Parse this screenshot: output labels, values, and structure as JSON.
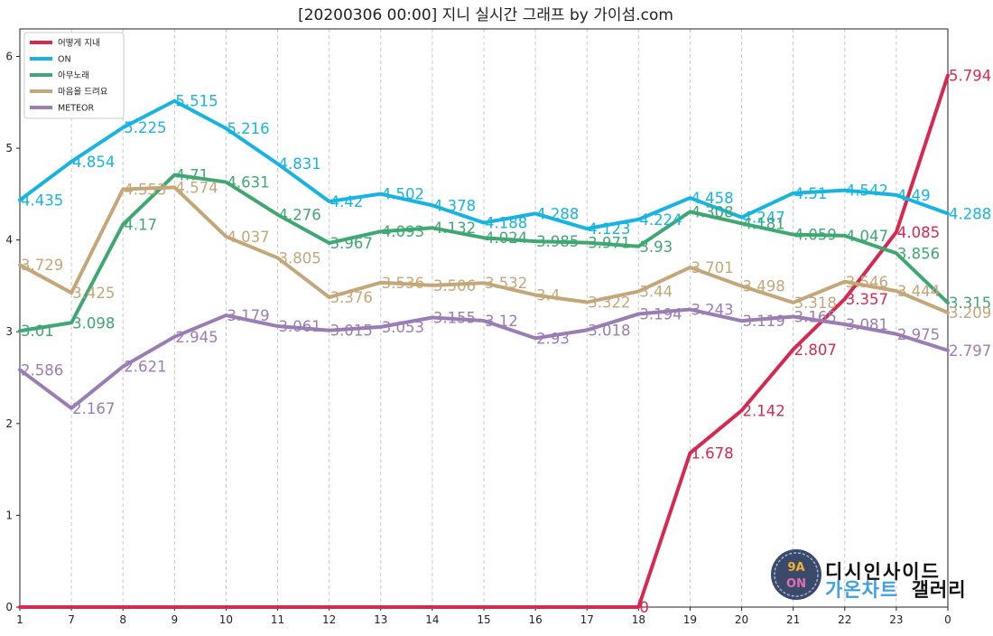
{
  "chart_data": {
    "type": "line",
    "title": "[20200306 00:00] 지니 실시간 그래프 by 가이섬.com",
    "xlabel": "",
    "ylabel": "",
    "categories": [
      "1",
      "7",
      "8",
      "9",
      "10",
      "11",
      "12",
      "13",
      "14",
      "15",
      "16",
      "17",
      "18",
      "19",
      "20",
      "21",
      "22",
      "23",
      "0"
    ],
    "ylim": [
      0,
      6.3
    ],
    "yticks": [
      0,
      1,
      2,
      3,
      4,
      5,
      6
    ],
    "grid": "vertical dashed",
    "legend_position": "top-left",
    "series": [
      {
        "name": "어떻게 지내",
        "color": "#d62950",
        "values": [
          0,
          0,
          0,
          0,
          0,
          0,
          0,
          0,
          0,
          0,
          0,
          0,
          0,
          1.678,
          2.142,
          2.807,
          3.357,
          4.085,
          5.794
        ],
        "labels": [
          "",
          "",
          "",
          "",
          "",
          "",
          "",
          "",
          "",
          "",
          "",
          "",
          "0",
          "1.678",
          "2.142",
          "2.807",
          "3.357",
          "4.085",
          "5.794"
        ]
      },
      {
        "name": "ON",
        "color": "#17b4e2",
        "values": [
          4.435,
          4.854,
          5.225,
          5.515,
          5.216,
          4.831,
          4.42,
          4.502,
          4.378,
          4.188,
          4.288,
          4.123,
          4.224,
          4.458,
          4.247,
          4.51,
          4.542,
          4.49,
          4.288
        ],
        "labels": [
          "4.435",
          "4.854",
          "5.225",
          "5.515",
          "5.216",
          "4.831",
          "4.42",
          "4.502",
          "4.378",
          "4.188",
          "4.288",
          "4.123",
          "4.224",
          "4.458",
          "4.247",
          "4.51",
          "4.542",
          "4.49",
          "4.288"
        ]
      },
      {
        "name": "아무노래",
        "color": "#3fa772",
        "values": [
          3.01,
          3.098,
          4.17,
          4.71,
          4.631,
          4.276,
          3.967,
          4.093,
          4.132,
          4.024,
          3.985,
          3.971,
          3.93,
          4.308,
          4.181,
          4.059,
          4.047,
          3.856,
          3.315
        ],
        "labels": [
          "3.01",
          "3.098",
          "4.17",
          "4.71",
          "4.631",
          "4.276",
          "3.967",
          "4.093",
          "4.132",
          "4.024",
          "3.985",
          "3.971",
          "3.93",
          "4.308",
          "4.181",
          "4.059",
          "4.047",
          "3.856",
          "3.315"
        ]
      },
      {
        "name": "마음을 드려요",
        "color": "#c4a779",
        "values": [
          3.729,
          3.425,
          4.553,
          4.574,
          4.037,
          3.805,
          3.376,
          3.536,
          3.506,
          3.532,
          3.4,
          3.322,
          3.44,
          3.701,
          3.498,
          3.318,
          3.546,
          3.444,
          3.209
        ],
        "labels": [
          "3.729",
          "3.425",
          "4.553",
          "4.574",
          "4.037",
          "3.805",
          "3.376",
          "3.536",
          "3.506",
          "3.532",
          "3.4",
          "3.322",
          "3.44",
          "3.701",
          "3.498",
          "3.318",
          "3.546",
          "3.444",
          "3.209"
        ]
      },
      {
        "name": "METEOR",
        "color": "#9a7db5",
        "values": [
          2.586,
          2.167,
          2.621,
          2.945,
          3.179,
          3.061,
          3.015,
          3.053,
          3.155,
          3.12,
          2.93,
          3.018,
          3.194,
          3.243,
          3.119,
          3.165,
          3.081,
          2.975,
          2.797
        ],
        "labels": [
          "2.586",
          "2.167",
          "2.621",
          "2.945",
          "3.179",
          "3.061",
          "3.015",
          "3.053",
          "3.155",
          "3.12",
          "2.93",
          "3.018",
          "3.194",
          "3.243",
          "3.119",
          "3.165",
          "3.081",
          "2.975",
          "2.797"
        ]
      }
    ]
  },
  "watermark": {
    "top_text": "디시인사이드",
    "bottom_text_1": "가온차트",
    "bottom_text_2": "갤러리",
    "badge_text": "9A ON",
    "top_color": "#111111",
    "bottom_color_1": "#3fa0e0",
    "bottom_color_2": "#111111"
  }
}
